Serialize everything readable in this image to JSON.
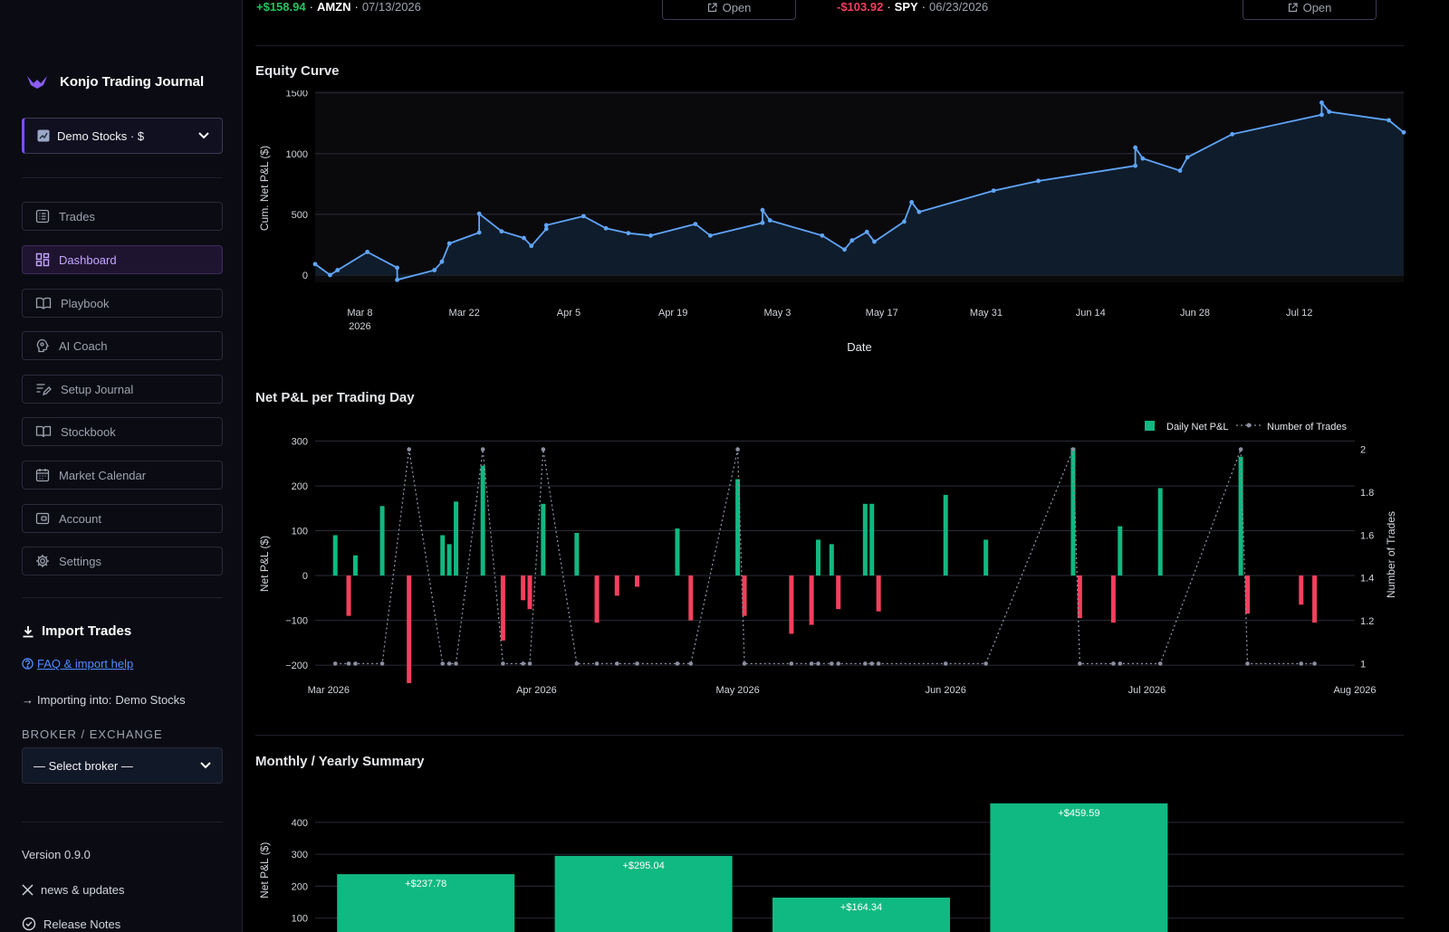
{
  "sidebar": {
    "brand_title": "Konjo Trading Journal",
    "account_select": "Demo Stocks · $",
    "nav": [
      {
        "label": "Trades",
        "icon": "list-icon"
      },
      {
        "label": "Dashboard",
        "icon": "dashboard-icon",
        "active": true
      },
      {
        "label": "Playbook",
        "icon": "book-icon"
      },
      {
        "label": "AI Coach",
        "icon": "brain-icon"
      },
      {
        "label": "Setup Journal",
        "icon": "pen-list-icon"
      },
      {
        "label": "Stockbook",
        "icon": "open-book-icon"
      },
      {
        "label": "Market Calendar",
        "icon": "calendar-icon"
      },
      {
        "label": "Account",
        "icon": "wallet-icon"
      },
      {
        "label": "Settings",
        "icon": "gear-icon"
      }
    ],
    "import": {
      "title": "Import Trades",
      "faq_link": "FAQ & import help",
      "importing_prefix": "Importing into:",
      "importing_account": "Demo Stocks",
      "broker_label": "BROKER / EXCHANGE",
      "broker_placeholder": "— Select broker —"
    },
    "version": "Version 0.9.0",
    "news_link": "news & updates",
    "release_notes": "Release Notes"
  },
  "top_trades": [
    {
      "pnl": "+$158.94",
      "symbol": "AMZN",
      "date": "07/13/2026",
      "button": "Open",
      "color": "#22c55e"
    },
    {
      "pnl": "-$103.92",
      "symbol": "SPY",
      "date": "06/23/2026",
      "button": "Open",
      "color": "#f43f5e"
    }
  ],
  "colors": {
    "accent": "#7c4dff",
    "positive": "#10b981",
    "negative": "#f43f5e",
    "line": "#60a5fa"
  },
  "sections": {
    "equity_title": "Equity Curve",
    "daily_title": "Net P&L per Trading Day",
    "monthly_title": "Monthly / Yearly Summary"
  },
  "chart_data": [
    {
      "type": "line",
      "title": "Equity Curve",
      "xlabel": "Date",
      "ylabel": "Cum. Net P&L ($)",
      "yticks": [
        0,
        500,
        1000,
        1500
      ],
      "xticks": [
        {
          "date": "2026-03-08",
          "label": "Mar 8",
          "sub": "2026"
        },
        {
          "date": "2026-03-22",
          "label": "Mar 22"
        },
        {
          "date": "2026-04-05",
          "label": "Apr 5"
        },
        {
          "date": "2026-04-19",
          "label": "Apr 19"
        },
        {
          "date": "2026-05-03",
          "label": "May 3"
        },
        {
          "date": "2026-05-17",
          "label": "May 17"
        },
        {
          "date": "2026-05-31",
          "label": "May 31"
        },
        {
          "date": "2026-06-14",
          "label": "Jun 14"
        },
        {
          "date": "2026-06-28",
          "label": "Jun 28"
        },
        {
          "date": "2026-07-12",
          "label": "Jul 12"
        }
      ],
      "xlim": [
        "2026-03-02",
        "2026-07-26"
      ],
      "ylim": [
        -60,
        1520
      ],
      "points": [
        [
          "2026-03-02",
          90
        ],
        [
          "2026-03-04",
          0
        ],
        [
          "2026-03-05",
          40
        ],
        [
          "2026-03-09",
          190
        ],
        [
          "2026-03-13",
          60
        ],
        [
          "2026-03-13",
          -40
        ],
        [
          "2026-03-18",
          40
        ],
        [
          "2026-03-19",
          110
        ],
        [
          "2026-03-20",
          260
        ],
        [
          "2026-03-24",
          350
        ],
        [
          "2026-03-24",
          505
        ],
        [
          "2026-03-27",
          360
        ],
        [
          "2026-03-30",
          305
        ],
        [
          "2026-03-31",
          240
        ],
        [
          "2026-04-02",
          380
        ],
        [
          "2026-04-02",
          410
        ],
        [
          "2026-04-07",
          485
        ],
        [
          "2026-04-10",
          385
        ],
        [
          "2026-04-13",
          345
        ],
        [
          "2026-04-16",
          325
        ],
        [
          "2026-04-22",
          420
        ],
        [
          "2026-04-24",
          325
        ],
        [
          "2026-05-01",
          430
        ],
        [
          "2026-05-01",
          535
        ],
        [
          "2026-05-02",
          450
        ],
        [
          "2026-05-09",
          325
        ],
        [
          "2026-05-12",
          210
        ],
        [
          "2026-05-13",
          285
        ],
        [
          "2026-05-15",
          355
        ],
        [
          "2026-05-16",
          275
        ],
        [
          "2026-05-20",
          440
        ],
        [
          "2026-05-21",
          600
        ],
        [
          "2026-05-22",
          520
        ],
        [
          "2026-06-01",
          695
        ],
        [
          "2026-06-07",
          775
        ],
        [
          "2026-06-20",
          900
        ],
        [
          "2026-06-20",
          1050
        ],
        [
          "2026-06-21",
          960
        ],
        [
          "2026-06-26",
          860
        ],
        [
          "2026-06-27",
          970
        ],
        [
          "2026-07-03",
          1160
        ],
        [
          "2026-07-15",
          1320
        ],
        [
          "2026-07-15",
          1420
        ],
        [
          "2026-07-16",
          1345
        ],
        [
          "2026-07-24",
          1275
        ],
        [
          "2026-07-26",
          1175
        ]
      ]
    },
    {
      "type": "bar",
      "title": "Net P&L per Trading Day",
      "xlabel": "",
      "ylabel": "Net P&L ($)",
      "y2label": "Number of Trades",
      "legend": [
        "Daily Net P&L",
        "Number of Trades"
      ],
      "legend_position": "top-right",
      "xlim": [
        "2026-02-27",
        "2026-08-01"
      ],
      "ylim": [
        -230,
        315
      ],
      "yticks": [
        300,
        200,
        100,
        0,
        -100,
        -200
      ],
      "y2lim": [
        0.93,
        2.07
      ],
      "y2ticks": [
        2,
        1.8,
        1.6,
        1.4,
        1.2,
        1
      ],
      "xticks": [
        {
          "date": "2026-03-01",
          "label": "Mar 2026"
        },
        {
          "date": "2026-04-01",
          "label": "Apr 2026"
        },
        {
          "date": "2026-05-01",
          "label": "May 2026"
        },
        {
          "date": "2026-06-01",
          "label": "Jun 2026"
        },
        {
          "date": "2026-07-01",
          "label": "Jul 2026"
        },
        {
          "date": "2026-08-01",
          "label": "Aug 2026"
        }
      ],
      "days": [
        [
          "2026-03-02",
          90,
          1
        ],
        [
          "2026-03-04",
          -90,
          1
        ],
        [
          "2026-03-05",
          45,
          1
        ],
        [
          "2026-03-09",
          155,
          1
        ],
        [
          "2026-03-13",
          -240,
          2
        ],
        [
          "2026-03-18",
          90,
          1
        ],
        [
          "2026-03-19",
          70,
          1
        ],
        [
          "2026-03-20",
          165,
          1
        ],
        [
          "2026-03-24",
          245,
          2
        ],
        [
          "2026-03-27",
          -145,
          1
        ],
        [
          "2026-03-30",
          -55,
          1
        ],
        [
          "2026-03-31",
          -75,
          1
        ],
        [
          "2026-04-02",
          160,
          2
        ],
        [
          "2026-04-07",
          95,
          1
        ],
        [
          "2026-04-10",
          -105,
          1
        ],
        [
          "2026-04-13",
          -45,
          1
        ],
        [
          "2026-04-16",
          -25,
          1
        ],
        [
          "2026-04-22",
          105,
          1
        ],
        [
          "2026-04-24",
          -100,
          1
        ],
        [
          "2026-05-01",
          215,
          2
        ],
        [
          "2026-05-02",
          -90,
          1
        ],
        [
          "2026-05-09",
          -130,
          1
        ],
        [
          "2026-05-12",
          -110,
          1
        ],
        [
          "2026-05-13",
          80,
          1
        ],
        [
          "2026-05-15",
          70,
          1
        ],
        [
          "2026-05-16",
          -75,
          1
        ],
        [
          "2026-05-20",
          160,
          1
        ],
        [
          "2026-05-21",
          160,
          1
        ],
        [
          "2026-05-22",
          -80,
          1
        ],
        [
          "2026-06-01",
          180,
          1
        ],
        [
          "2026-06-07",
          80,
          1
        ],
        [
          "2026-06-20",
          285,
          2
        ],
        [
          "2026-06-21",
          -95,
          1
        ],
        [
          "2026-06-26",
          -105,
          1
        ],
        [
          "2026-06-27",
          110,
          1
        ],
        [
          "2026-07-03",
          195,
          1
        ],
        [
          "2026-07-15",
          265,
          2
        ],
        [
          "2026-07-16",
          -85,
          1
        ],
        [
          "2026-07-24",
          -65,
          1
        ],
        [
          "2026-07-26",
          -105,
          1
        ]
      ]
    },
    {
      "type": "bar",
      "title": "Monthly / Yearly Summary",
      "ylabel": "Net P&L ($)",
      "yticks": [
        100,
        200,
        300,
        400
      ],
      "ylim": [
        0,
        510
      ],
      "values": [
        237.78,
        295.04,
        164.34,
        459.59
      ],
      "labels": [
        "+$237.78",
        "+$295.04",
        "+$164.34",
        "+$459.59"
      ]
    }
  ]
}
